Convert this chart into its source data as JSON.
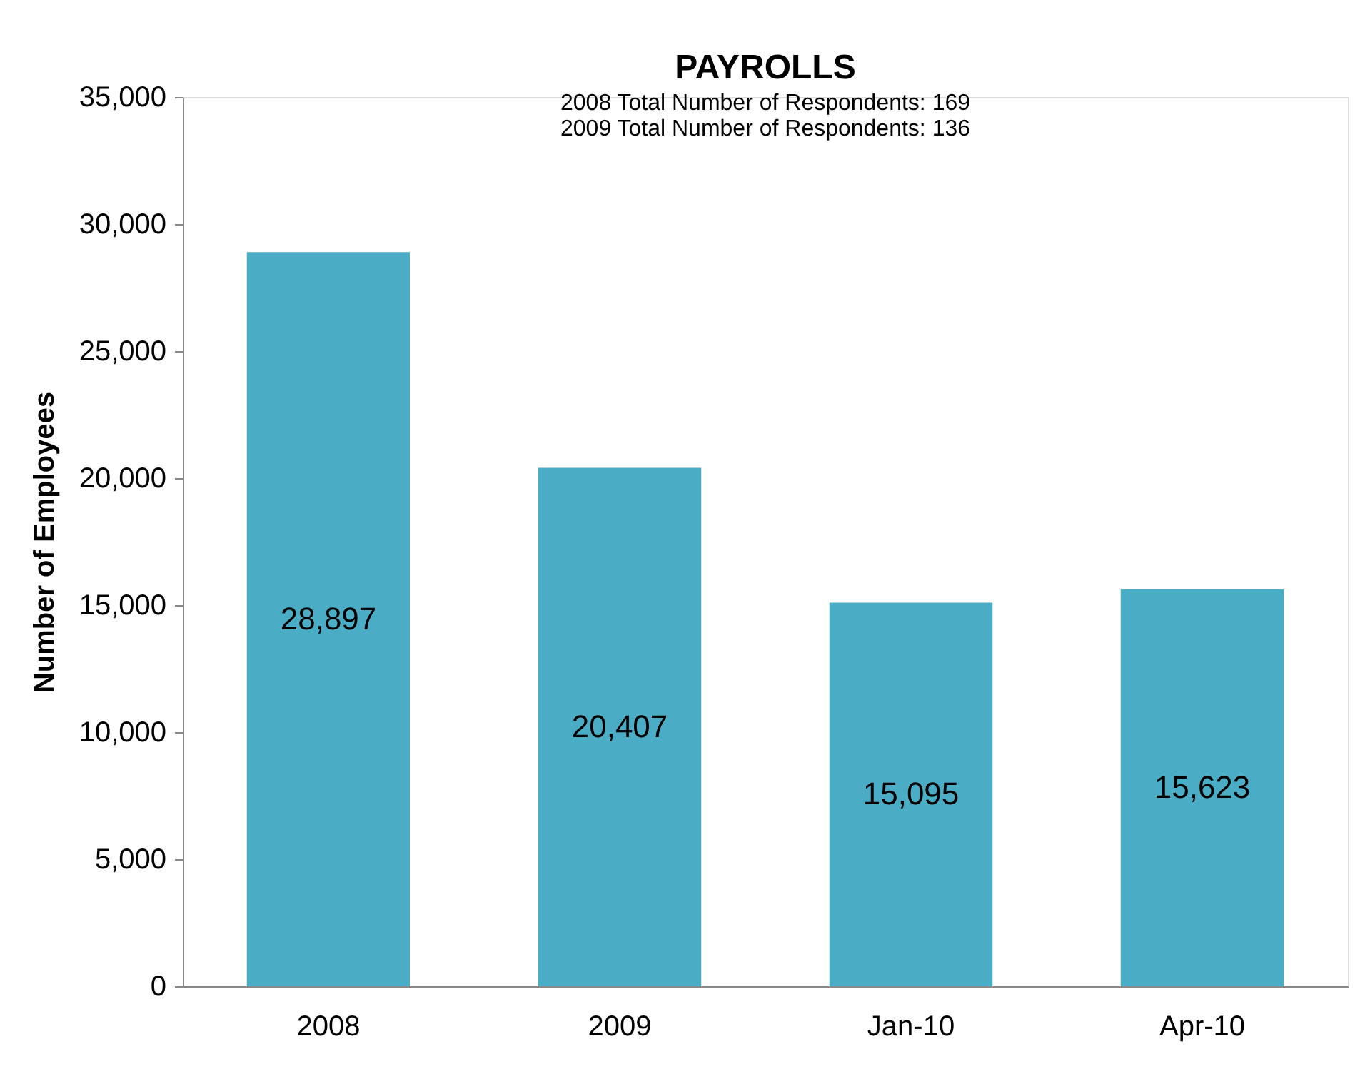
{
  "chart_data": {
    "type": "bar",
    "title": "PAYROLLS",
    "subtitle": "2008 Total Number of Respondents: 169\n2009 Total Number of Respondents: 136",
    "ylabel": "Number of Employees",
    "categories": [
      "2008",
      "2009",
      "Jan-10",
      "Apr-10"
    ],
    "values": [
      28897,
      20407,
      15095,
      15623
    ],
    "color": "#4bacc6",
    "ylim": [
      0,
      35000
    ],
    "yticks": [
      0,
      {
        "value": 5000,
        "label": "5,000"
      },
      {
        "value": 10000,
        "label": "10,000"
      },
      {
        "value": 15000,
        "label": "15,000"
      },
      {
        "value": 20000,
        "label": "20,000"
      },
      {
        "value": 25000,
        "label": "25,000"
      },
      {
        "value": 30000,
        "label": "30,000"
      },
      {
        "value": 35000,
        "label": "35,000"
      }
    ],
    "value_labels": [
      "28,897",
      "20,407",
      "15,095",
      "15,623"
    ],
    "grid": false
  }
}
